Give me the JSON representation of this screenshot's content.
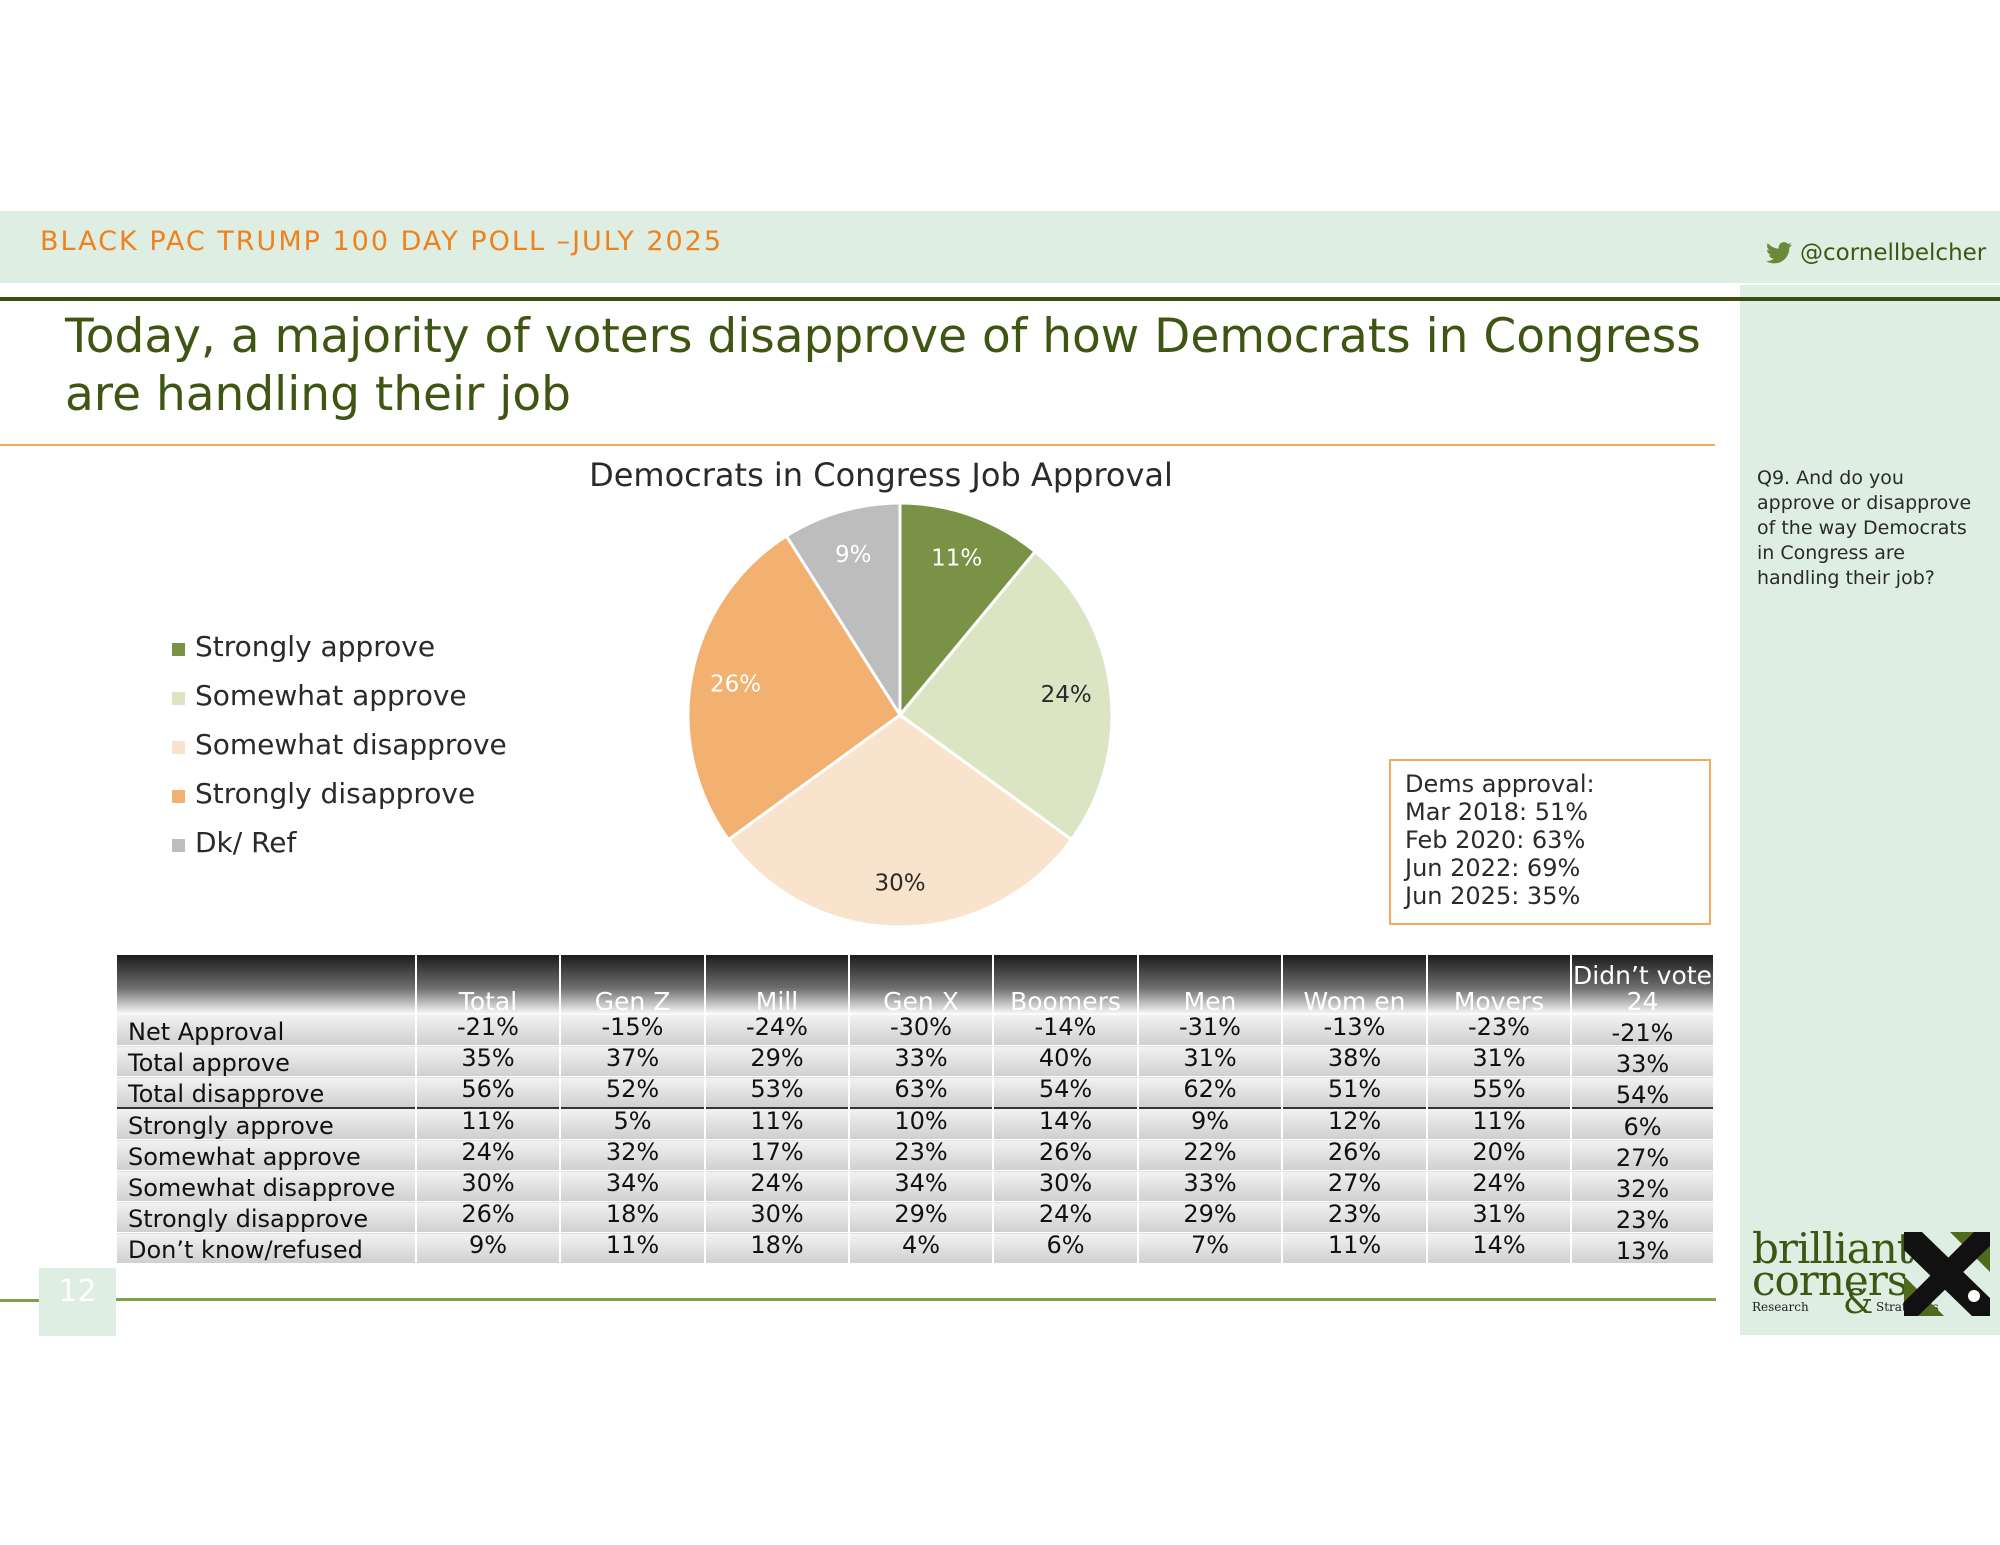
{
  "header": {
    "poll_name": "BLACK PAC TRUMP 100 DAY POLL –JULY 2025",
    "twitter_handle": "@cornellbelcher"
  },
  "slide": {
    "title": "Today, a majority of voters disapprove of how Democrats in Congress are handling their job",
    "question": "Q9. And do you approve or disapprove of the way Democrats in Congress are handling their job?",
    "page_number": "12"
  },
  "callout": {
    "heading": "Dems approval:",
    "lines": [
      "Mar 2018: 51%",
      "Feb 2020: 63%",
      "Jun 2022: 69%",
      "Jun 2025: 35%"
    ]
  },
  "chart_data": {
    "type": "pie",
    "title": "Democrats in Congress Job Approval",
    "legend_position": "left",
    "categories": [
      "Strongly approve",
      "Somewhat approve",
      "Somewhat disapprove",
      "Strongly disapprove",
      "Dk/ Ref"
    ],
    "values": [
      11,
      24,
      30,
      26,
      9
    ],
    "labels": [
      "11%",
      "24%",
      "30%",
      "26%",
      "9%"
    ],
    "colors": [
      "#7a9245",
      "#dbe5c4",
      "#f9e3cc",
      "#f2b071",
      "#bdbdbd"
    ],
    "label_colors": [
      "#ffffff",
      "#2a2a2a",
      "#2a2a2a",
      "#ffffff",
      "#ffffff"
    ]
  },
  "table": {
    "columns": [
      "",
      "Total",
      "Gen Z",
      "Mill",
      "Gen X",
      "Boomers",
      "Men",
      "Wom en",
      "Movers",
      "Didn’t vote 24"
    ],
    "rows": [
      {
        "label": "Net Approval",
        "values": [
          "-21%",
          "-15%",
          "-24%",
          "-30%",
          "-14%",
          "-31%",
          "-13%",
          "-23%",
          "-21%"
        ]
      },
      {
        "label": "Total approve",
        "values": [
          "35%",
          "37%",
          "29%",
          "33%",
          "40%",
          "31%",
          "38%",
          "31%",
          "33%"
        ]
      },
      {
        "label": "Total disapprove",
        "values": [
          "56%",
          "52%",
          "53%",
          "63%",
          "54%",
          "62%",
          "51%",
          "55%",
          "54%"
        ]
      },
      {
        "label": "Strongly approve",
        "values": [
          "11%",
          "5%",
          "11%",
          "10%",
          "14%",
          "9%",
          "12%",
          "11%",
          "6%"
        ]
      },
      {
        "label": "Somewhat approve",
        "values": [
          "24%",
          "32%",
          "17%",
          "23%",
          "26%",
          "22%",
          "26%",
          "20%",
          "27%"
        ]
      },
      {
        "label": "Somewhat disapprove",
        "values": [
          "30%",
          "34%",
          "24%",
          "34%",
          "30%",
          "33%",
          "27%",
          "24%",
          "32%"
        ]
      },
      {
        "label": "Strongly disapprove",
        "values": [
          "26%",
          "18%",
          "30%",
          "29%",
          "24%",
          "29%",
          "23%",
          "31%",
          "23%"
        ]
      },
      {
        "label": "Don’t know/refused",
        "values": [
          "9%",
          "11%",
          "18%",
          "4%",
          "6%",
          "7%",
          "11%",
          "14%",
          "13%"
        ]
      }
    ]
  },
  "logo": {
    "word1": "brilliant",
    "word2": "corners",
    "sub1": "Research",
    "amp": "&",
    "sub2": "Strategies"
  }
}
